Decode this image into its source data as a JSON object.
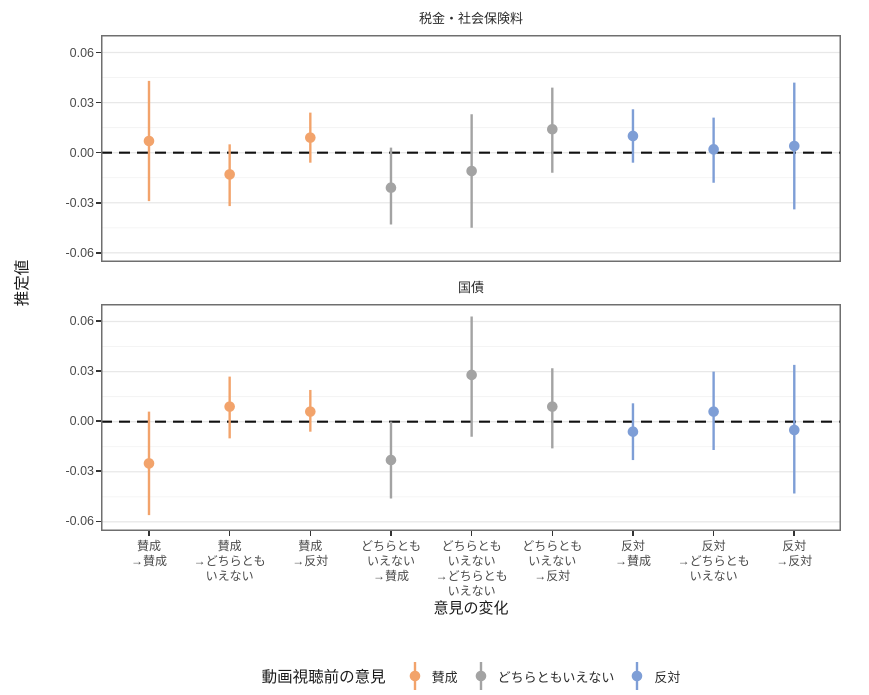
{
  "chart_data": {
    "type": "scatter",
    "subtype": "pointrange-facets",
    "ylabel": "推定値",
    "xlabel": "意見の変化",
    "zero_reference_line": true,
    "grid": "horizontal-only",
    "legend_position": "bottom",
    "legend": {
      "title": "動画視聴前の意見",
      "items": [
        {
          "label": "賛成",
          "group": "agree"
        },
        {
          "label": "どちらともいえない",
          "group": "neutral"
        },
        {
          "label": "反対",
          "group": "oppose"
        }
      ]
    },
    "style": {
      "agree": "#F2A36B",
      "neutral": "#A3A3A3",
      "oppose": "#7E9ED6",
      "zero_line": "#111111",
      "panel_border": "#6F6F6F",
      "grid_major": "#E8E8E8",
      "grid_minor": "#F3F3F3",
      "tick_mark": "#333333"
    },
    "y_axis": {
      "ticks": [
        0.06,
        0.03,
        0.0,
        -0.03,
        -0.06
      ],
      "minor_ticks": [
        0.045,
        0.015,
        -0.015,
        -0.045
      ],
      "range": [
        -0.0655,
        0.0705
      ]
    },
    "categories": [
      {
        "lines": [
          "賛成",
          "→賛成"
        ],
        "group": "agree"
      },
      {
        "lines": [
          "賛成",
          "→どちらとも",
          "いえない"
        ],
        "group": "agree"
      },
      {
        "lines": [
          "賛成",
          "→反対"
        ],
        "group": "agree"
      },
      {
        "lines": [
          "どちらとも",
          "いえない",
          "→賛成"
        ],
        "group": "neutral"
      },
      {
        "lines": [
          "どちらとも",
          "いえない",
          "→どちらとも",
          "いえない"
        ],
        "group": "neutral"
      },
      {
        "lines": [
          "どちらとも",
          "いえない",
          "→反対"
        ],
        "group": "neutral"
      },
      {
        "lines": [
          "反対",
          "→賛成"
        ],
        "group": "oppose"
      },
      {
        "lines": [
          "反対",
          "→どちらとも",
          "いえない"
        ],
        "group": "oppose"
      },
      {
        "lines": [
          "反対",
          "→反対"
        ],
        "group": "oppose"
      }
    ],
    "facets": [
      {
        "title": "税金・社会保険料",
        "points": [
          {
            "est": 0.007,
            "lo": -0.029,
            "hi": 0.043
          },
          {
            "est": -0.013,
            "lo": -0.032,
            "hi": 0.005
          },
          {
            "est": 0.009,
            "lo": -0.006,
            "hi": 0.024
          },
          {
            "est": -0.021,
            "lo": -0.043,
            "hi": 0.003
          },
          {
            "est": -0.011,
            "lo": -0.045,
            "hi": 0.023
          },
          {
            "est": 0.014,
            "lo": -0.012,
            "hi": 0.039
          },
          {
            "est": 0.01,
            "lo": -0.006,
            "hi": 0.026
          },
          {
            "est": 0.002,
            "lo": -0.018,
            "hi": 0.021
          },
          {
            "est": 0.004,
            "lo": -0.034,
            "hi": 0.042
          }
        ]
      },
      {
        "title": "国債",
        "points": [
          {
            "est": -0.025,
            "lo": -0.056,
            "hi": 0.006
          },
          {
            "est": 0.009,
            "lo": -0.01,
            "hi": 0.027
          },
          {
            "est": 0.006,
            "lo": -0.006,
            "hi": 0.019
          },
          {
            "est": -0.023,
            "lo": -0.046,
            "hi": 0.0
          },
          {
            "est": 0.028,
            "lo": -0.009,
            "hi": 0.063
          },
          {
            "est": 0.009,
            "lo": -0.016,
            "hi": 0.032
          },
          {
            "est": -0.006,
            "lo": -0.023,
            "hi": 0.011
          },
          {
            "est": 0.006,
            "lo": -0.017,
            "hi": 0.03
          },
          {
            "est": -0.005,
            "lo": -0.043,
            "hi": 0.034
          }
        ]
      }
    ]
  }
}
